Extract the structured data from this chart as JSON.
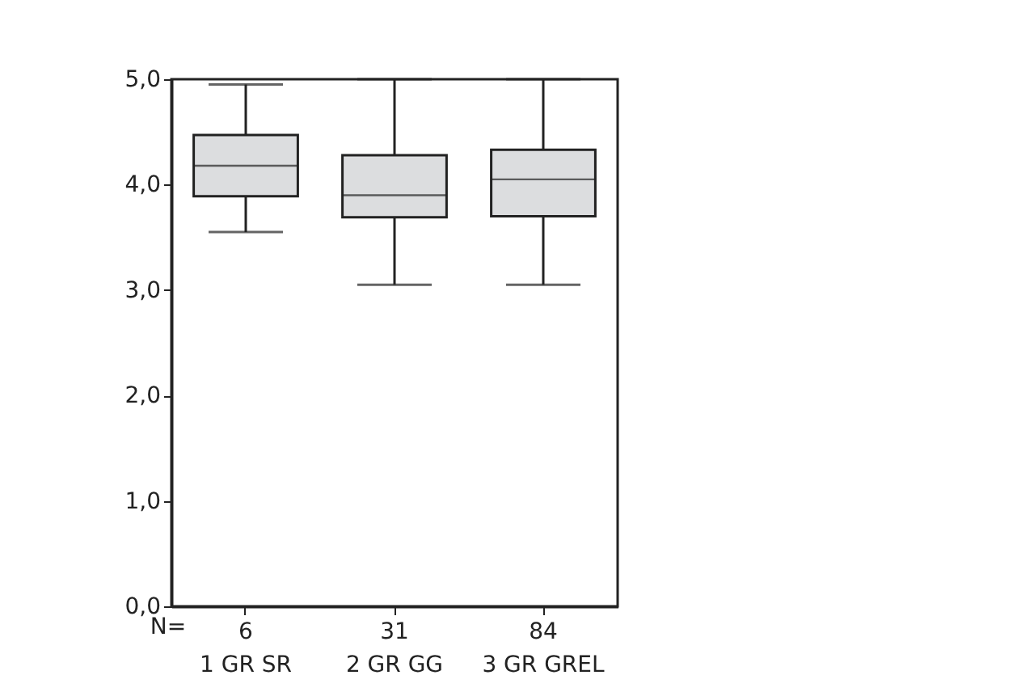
{
  "chart_data": {
    "type": "box",
    "categories": [
      "1 GR SR",
      "2 GR GG",
      "3 GR GREL"
    ],
    "boxes": [
      {
        "low": 3.55,
        "q1": 3.89,
        "median": 4.18,
        "q3": 4.47,
        "high": 4.95
      },
      {
        "low": 3.05,
        "q1": 3.69,
        "median": 3.9,
        "q3": 4.28,
        "high": 5.0
      },
      {
        "low": 3.05,
        "q1": 3.7,
        "median": 4.05,
        "q3": 4.33,
        "high": 5.0
      }
    ],
    "color": "#dcdddf",
    "ylim": [
      0,
      5
    ],
    "yticks": [
      {
        "value": 0,
        "label": "0,0"
      },
      {
        "value": 1,
        "label": "1,0"
      },
      {
        "value": 2,
        "label": "2,0"
      },
      {
        "value": 3,
        "label": "3,0"
      },
      {
        "value": 4,
        "label": "4,0"
      },
      {
        "value": 5,
        "label": "5,0"
      }
    ],
    "annotations": [
      "N=",
      "6",
      "31",
      "84"
    ],
    "grid": false
  }
}
